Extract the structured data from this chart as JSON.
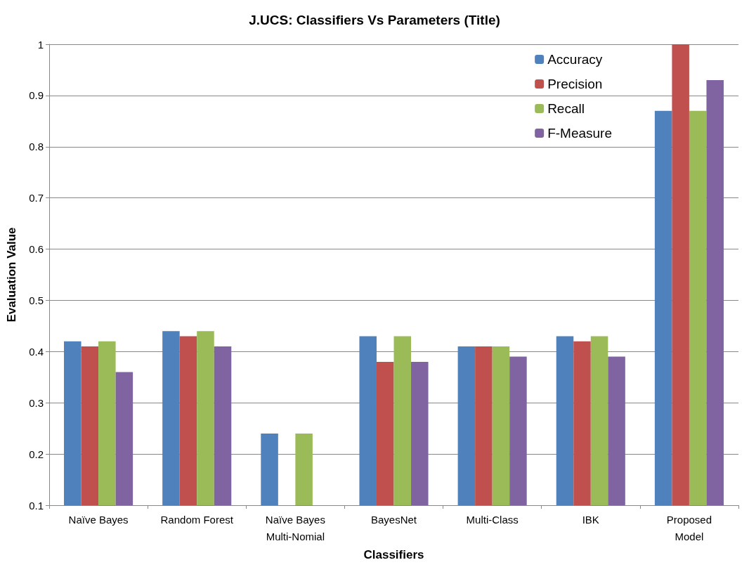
{
  "chart_data": {
    "type": "bar",
    "title": "J.UCS: Classifiers Vs Parameters (Title)",
    "xlabel": "Classifiers",
    "ylabel": "Evaluation Value",
    "categories": [
      "Naïve Bayes",
      "Random Forest",
      "Naïve Bayes\nMulti-Nomial",
      "BayesNet",
      "Multi-Class",
      "IBK",
      "Proposed\nModel"
    ],
    "series": [
      {
        "name": "Accuracy",
        "color": "#4f81bd",
        "values": [
          0.42,
          0.44,
          0.24,
          0.43,
          0.41,
          0.43,
          0.87
        ]
      },
      {
        "name": "Precision",
        "color": "#c0504d",
        "values": [
          0.41,
          0.43,
          null,
          0.38,
          0.41,
          0.42,
          1.0
        ]
      },
      {
        "name": "Recall",
        "color": "#9bbb59",
        "values": [
          0.42,
          0.44,
          0.24,
          0.43,
          0.41,
          0.43,
          0.87
        ]
      },
      {
        "name": "F-Measure",
        "color": "#8064a2",
        "values": [
          0.36,
          0.41,
          null,
          0.38,
          0.39,
          0.39,
          0.93
        ]
      }
    ],
    "ylim": [
      0.1,
      1
    ],
    "yticks": [
      0.1,
      0.2,
      0.3,
      0.4,
      0.5,
      0.6,
      0.7,
      0.8,
      0.9,
      1
    ],
    "grid": "y",
    "legend": "top right"
  }
}
